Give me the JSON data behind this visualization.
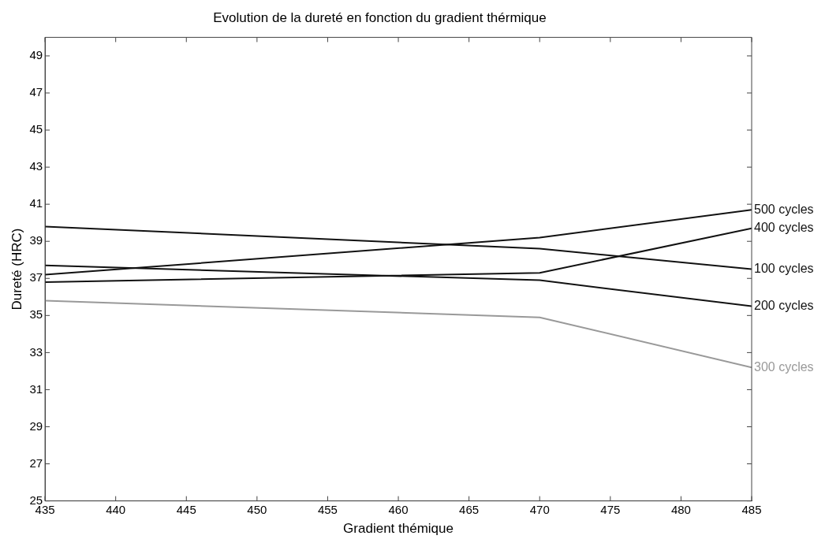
{
  "chart_data": {
    "type": "line",
    "title": "Evolution de la dureté en fonction du gradient thérmique",
    "xlabel": "Gradient thémique",
    "ylabel": "Dureté (HRC)",
    "x": [
      435,
      470,
      485
    ],
    "xlim": [
      435,
      485
    ],
    "xticks": [
      435,
      440,
      445,
      450,
      455,
      460,
      465,
      470,
      475,
      480,
      485
    ],
    "ylim": [
      25,
      50
    ],
    "yticks": [
      25,
      27,
      29,
      31,
      33,
      35,
      37,
      39,
      41,
      43,
      45,
      47,
      49
    ],
    "grid": false,
    "legend": false,
    "marker": "none",
    "line_style": "solid",
    "series": [
      {
        "name": "500 cycles",
        "color": "#111111",
        "values": [
          37.2,
          39.2,
          40.7
        ]
      },
      {
        "name": "400 cycles",
        "color": "#111111",
        "values": [
          36.8,
          37.3,
          39.7
        ]
      },
      {
        "name": "100 cycles",
        "color": "#111111",
        "values": [
          39.8,
          38.6,
          37.5
        ]
      },
      {
        "name": "200 cycles",
        "color": "#111111",
        "values": [
          37.7,
          36.9,
          35.5
        ]
      },
      {
        "name": "300 cycles",
        "color": "#999999",
        "values": [
          35.8,
          34.9,
          32.2
        ]
      }
    ]
  }
}
